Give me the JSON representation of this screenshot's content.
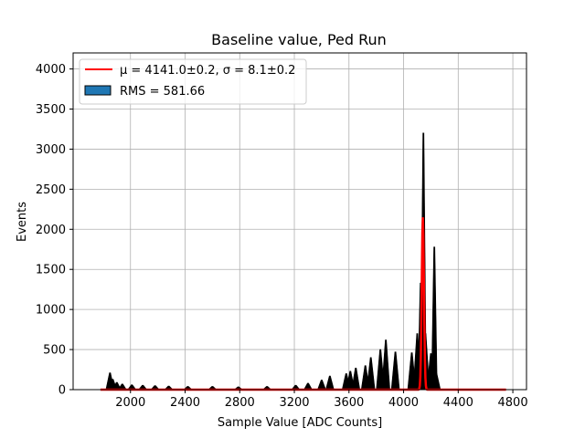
{
  "chart_data": {
    "type": "bar",
    "title": "Baseline value, Ped Run",
    "xlabel": "Sample Value [ADC Counts]",
    "ylabel": "Events",
    "xlim": [
      1580,
      4900
    ],
    "ylim": [
      0,
      4200
    ],
    "xticks": [
      2000,
      2400,
      2800,
      3200,
      3600,
      4000,
      4400,
      4800
    ],
    "yticks": [
      0,
      500,
      1000,
      1500,
      2000,
      2500,
      3000,
      3500,
      4000
    ],
    "grid": true,
    "legend_position": "top-left",
    "histogram_color": "#1f77b4",
    "histogram_edge": "#000000",
    "fit_color": "#ff0000",
    "histogram_peaks": [
      {
        "x": 1850,
        "y": 210
      },
      {
        "x": 1870,
        "y": 130
      },
      {
        "x": 1900,
        "y": 90
      },
      {
        "x": 1940,
        "y": 70
      },
      {
        "x": 2010,
        "y": 60
      },
      {
        "x": 2090,
        "y": 55
      },
      {
        "x": 2180,
        "y": 50
      },
      {
        "x": 2280,
        "y": 45
      },
      {
        "x": 2420,
        "y": 40
      },
      {
        "x": 2600,
        "y": 40
      },
      {
        "x": 2790,
        "y": 35
      },
      {
        "x": 3000,
        "y": 40
      },
      {
        "x": 3210,
        "y": 55
      },
      {
        "x": 3300,
        "y": 80
      },
      {
        "x": 3400,
        "y": 120
      },
      {
        "x": 3460,
        "y": 170
      },
      {
        "x": 3580,
        "y": 200
      },
      {
        "x": 3610,
        "y": 230
      },
      {
        "x": 3650,
        "y": 270
      },
      {
        "x": 3720,
        "y": 300
      },
      {
        "x": 3760,
        "y": 400
      },
      {
        "x": 3830,
        "y": 500
      },
      {
        "x": 3870,
        "y": 620
      },
      {
        "x": 3940,
        "y": 470
      },
      {
        "x": 4060,
        "y": 460
      },
      {
        "x": 4100,
        "y": 700
      },
      {
        "x": 4125,
        "y": 1330
      },
      {
        "x": 4145,
        "y": 3200
      },
      {
        "x": 4160,
        "y": 700
      },
      {
        "x": 4200,
        "y": 450
      },
      {
        "x": 4225,
        "y": 1780
      },
      {
        "x": 4240,
        "y": 200
      }
    ],
    "fit": {
      "mu": 4141.0,
      "sigma": 8.1,
      "amplitude": 2150,
      "range": [
        1780,
        4750
      ]
    },
    "legend": [
      {
        "label": "μ = 4141.0±0.2, σ = 8.1±0.2",
        "kind": "line"
      },
      {
        "label": "RMS = 581.66",
        "kind": "patch"
      }
    ]
  }
}
